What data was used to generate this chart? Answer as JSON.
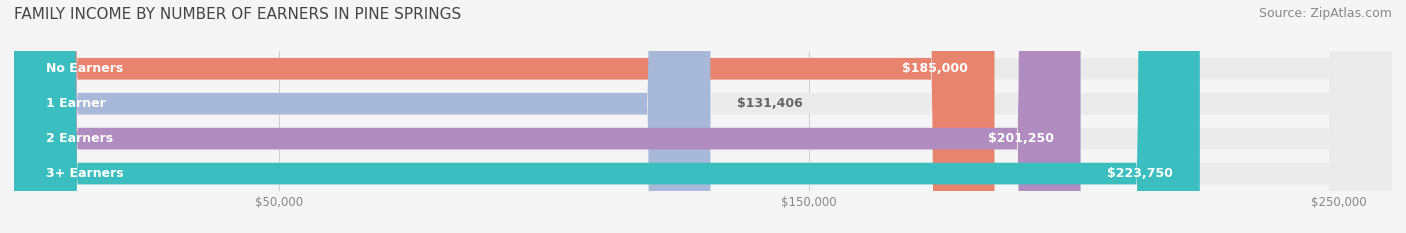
{
  "title": "FAMILY INCOME BY NUMBER OF EARNERS IN PINE SPRINGS",
  "source": "Source: ZipAtlas.com",
  "categories": [
    "No Earners",
    "1 Earner",
    "2 Earners",
    "3+ Earners"
  ],
  "values": [
    185000,
    131406,
    201250,
    223750
  ],
  "bar_colors": [
    "#E8836E",
    "#A8B8D8",
    "#B08CC0",
    "#3BBEC0"
  ],
  "bar_bg_color": "#EBEBEB",
  "value_labels": [
    "$185,000",
    "$131,406",
    "$201,250",
    "$223,750"
  ],
  "x_tick_labels": [
    "$50,000",
    "$150,000",
    "$250,000"
  ],
  "x_tick_values": [
    50000,
    150000,
    250000
  ],
  "xmin": 0,
  "xmax": 260000,
  "background_color": "#F5F5F5",
  "title_fontsize": 11,
  "source_fontsize": 9,
  "label_fontsize": 9,
  "value_inside_color": "#FFFFFF",
  "value_outside_color": "#666666"
}
